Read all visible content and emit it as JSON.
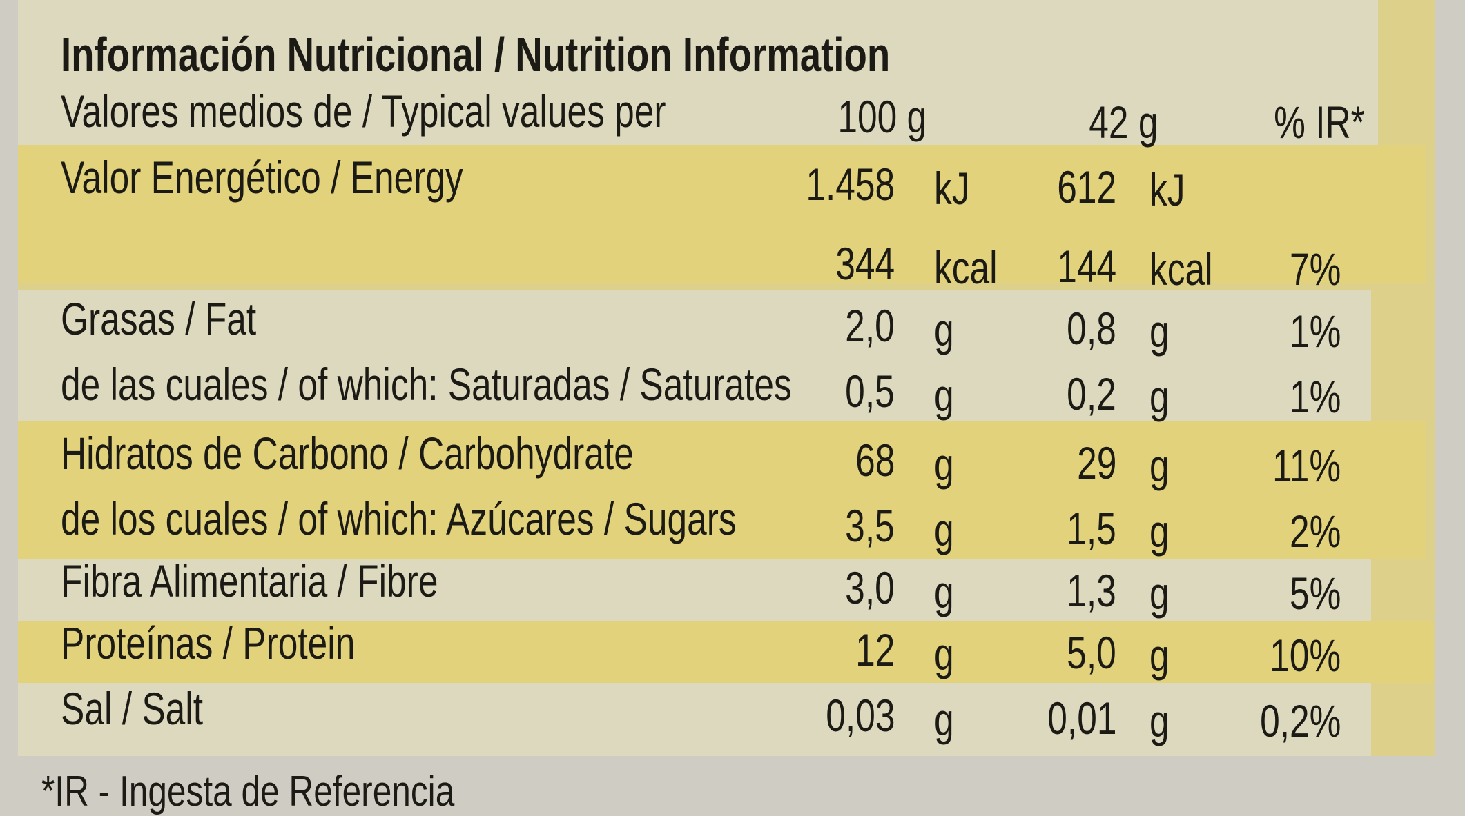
{
  "title": "Información Nutricional / Nutrition Information",
  "header": {
    "label": "Valores medios de / Typical values per",
    "col1": "100 g",
    "col2": "42 g",
    "col3": "% IR*"
  },
  "rows": [
    {
      "label": "Valor Energético  / Energy",
      "v1": "1.458",
      "u1": "kJ",
      "v2": "612",
      "u2": "kJ",
      "ir": ""
    },
    {
      "label": "",
      "v1": "344",
      "u1": "kcal",
      "v2": "144",
      "u2": "kcal",
      "ir": "7%"
    },
    {
      "label": "Grasas / Fat",
      "v1": "2,0",
      "u1": "g",
      "v2": "0,8",
      "u2": "g",
      "ir": "1%"
    },
    {
      "label": "de las cuales / of which: Saturadas / Saturates",
      "v1": "0,5",
      "u1": "g",
      "v2": "0,2",
      "u2": "g",
      "ir": "1%"
    },
    {
      "label": "Hidratos de Carbono / Carbohydrate",
      "v1": "68",
      "u1": "g",
      "v2": "29",
      "u2": "g",
      "ir": "11%"
    },
    {
      "label": "de los cuales / of which: Azúcares / Sugars",
      "v1": "3,5",
      "u1": "g",
      "v2": "1,5",
      "u2": "g",
      "ir": "2%"
    },
    {
      "label": "Fibra Alimentaria / Fibre",
      "v1": "3,0",
      "u1": "g",
      "v2": "1,3",
      "u2": "g",
      "ir": "5%"
    },
    {
      "label": "Proteínas / Protein",
      "v1": "12",
      "u1": "g",
      "v2": "5,0",
      "u2": "g",
      "ir": "10%"
    },
    {
      "label": "Sal / Salt",
      "v1": "0,03",
      "u1": "g",
      "v2": "0,01",
      "u2": "g",
      "ir": "0,2%"
    }
  ],
  "footer": "*IR - Ingesta de Referencia"
}
